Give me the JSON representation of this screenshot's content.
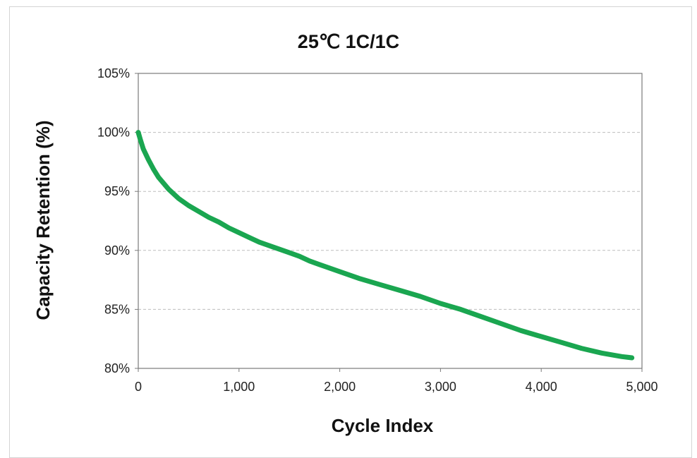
{
  "chart_data": {
    "type": "line",
    "title": "25℃ 1C/1C",
    "xlabel": "Cycle Index",
    "ylabel": "Capacity Retention (%)",
    "xlim": [
      0,
      5000
    ],
    "ylim": [
      80,
      105
    ],
    "x_ticks": [
      0,
      1000,
      2000,
      3000,
      4000,
      5000
    ],
    "x_tick_labels": [
      "0",
      "1,000",
      "2,000",
      "3,000",
      "4,000",
      "5,000"
    ],
    "y_ticks": [
      80,
      85,
      90,
      95,
      100,
      105
    ],
    "y_tick_labels": [
      "80%",
      "85%",
      "90%",
      "95%",
      "100%",
      "105%"
    ],
    "grid": "horizontal dashed",
    "legend": "none",
    "series": [
      {
        "color": "#1aa650",
        "x": [
          0,
          20,
          50,
          100,
          150,
          200,
          300,
          400,
          500,
          600,
          700,
          800,
          900,
          1000,
          1100,
          1200,
          1300,
          1400,
          1500,
          1600,
          1700,
          1800,
          1900,
          2000,
          2200,
          2400,
          2600,
          2800,
          3000,
          3200,
          3400,
          3600,
          3800,
          4000,
          4200,
          4400,
          4600,
          4800,
          4900
        ],
        "y": [
          100.0,
          99.4,
          98.6,
          97.7,
          96.9,
          96.2,
          95.2,
          94.4,
          93.8,
          93.3,
          92.8,
          92.4,
          91.9,
          91.5,
          91.1,
          90.7,
          90.4,
          90.1,
          89.8,
          89.5,
          89.1,
          88.8,
          88.5,
          88.2,
          87.6,
          87.1,
          86.6,
          86.1,
          85.5,
          85.0,
          84.4,
          83.8,
          83.2,
          82.7,
          82.2,
          81.7,
          81.3,
          81.0,
          80.9
        ]
      }
    ]
  }
}
